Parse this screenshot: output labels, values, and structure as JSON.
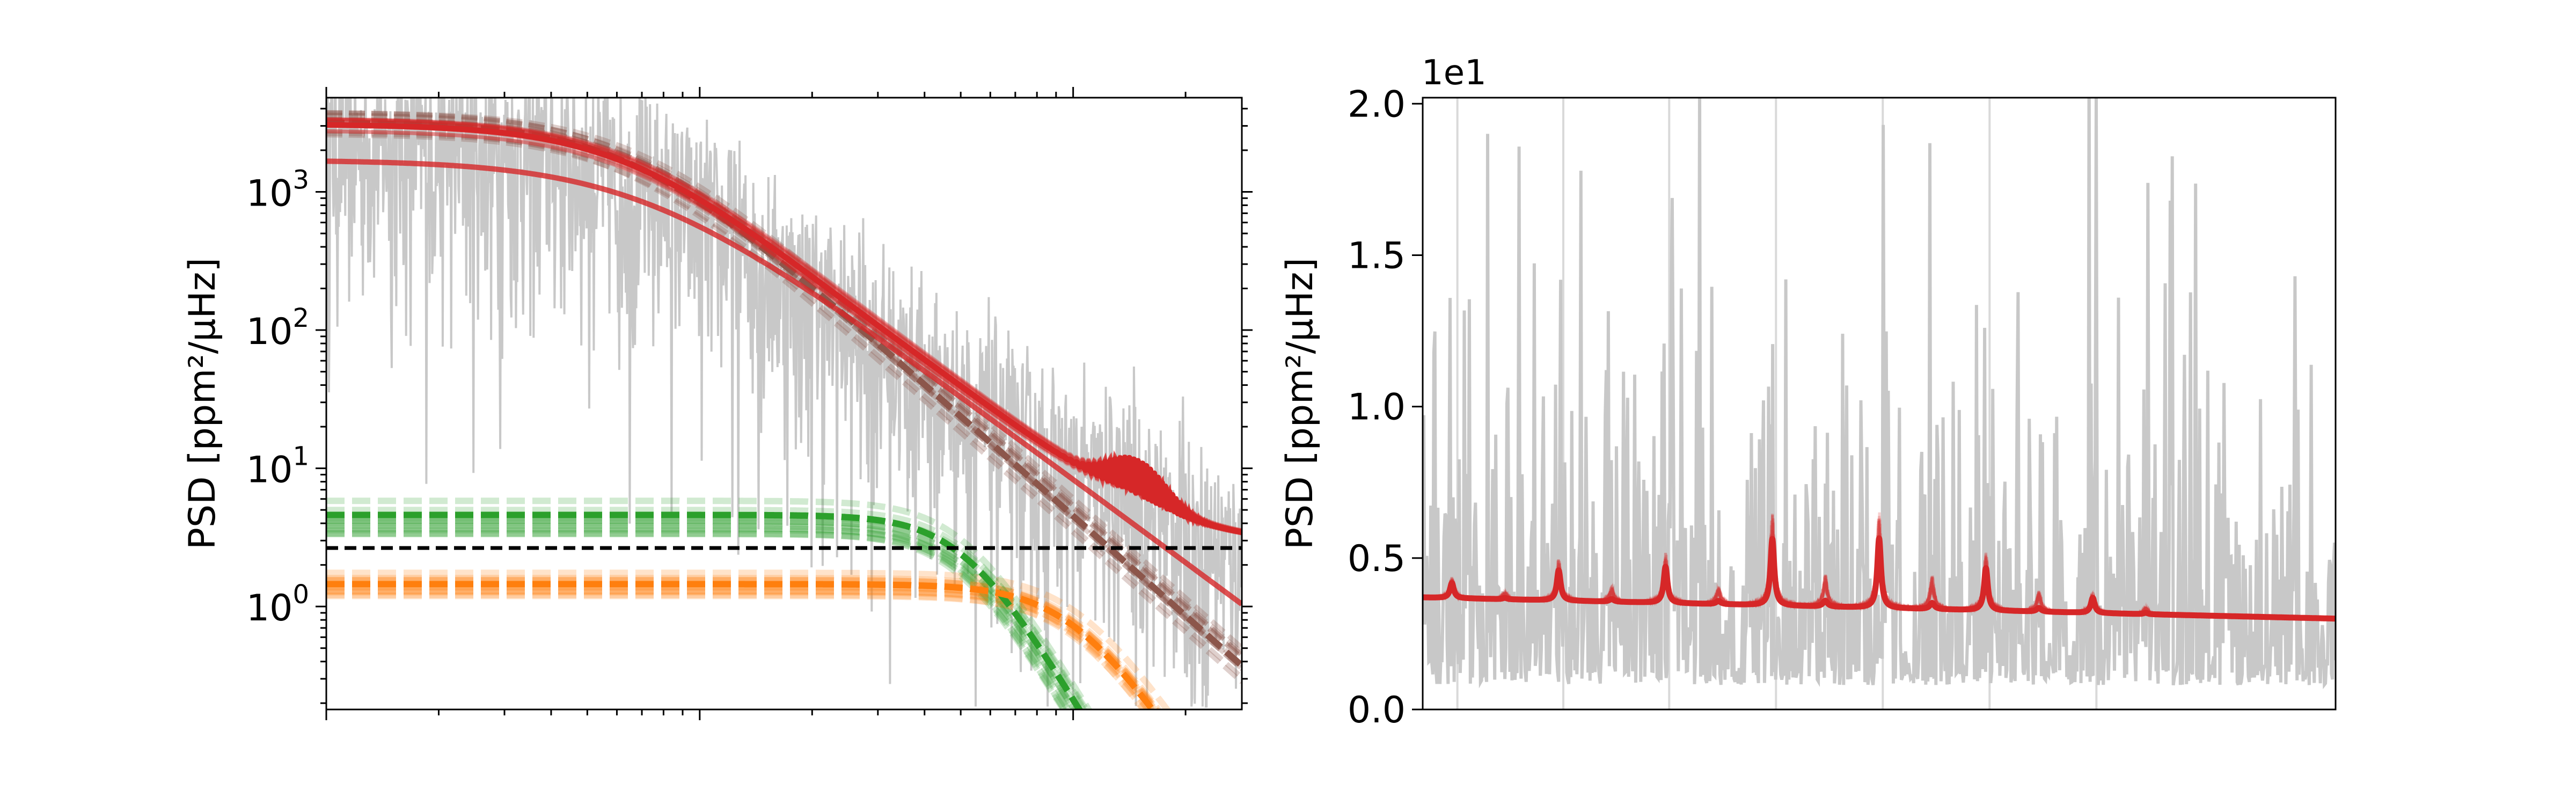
{
  "chart_data": [
    {
      "type": "line",
      "panel": "left",
      "title": "",
      "xlabel": "",
      "ylabel": "PSD [ppm²/μHz]",
      "yscale": "log",
      "xscale": "log",
      "ylim": [
        0.18,
        4800
      ],
      "xlim": [
        1,
        283
      ],
      "yticks": [
        {
          "value": 1,
          "base": "10",
          "exp": "0"
        },
        {
          "value": 10,
          "base": "10",
          "exp": "1"
        },
        {
          "value": 100,
          "base": "10",
          "exp": "2"
        },
        {
          "value": 1000,
          "base": "10",
          "exp": "3"
        }
      ],
      "x_tick_labels_shown": false,
      "grid": false,
      "legend": "none",
      "white_noise_level": 2.65,
      "oscillation_envelope": {
        "center": 144,
        "amplitude": 5.5,
        "width": 0.07
      },
      "components": [
        {
          "role": "granulation-high",
          "color": "#2ca02c",
          "style": "dashed",
          "level": 4.6,
          "knee": 51,
          "exponent": 4.5
        },
        {
          "role": "granulation-faint",
          "color": "#ff7f0e",
          "style": "dashed",
          "level": 1.45,
          "knee": 100,
          "exponent": 4.0
        },
        {
          "role": "granulation-low",
          "color": "#8c564b",
          "style": "dashed",
          "level": 3200,
          "knee": 6.5,
          "exponent": 2.4
        },
        {
          "role": "low-frequency",
          "color": "#d62728",
          "style": "solid",
          "level": 1700,
          "knee": 7.0,
          "exponent": 2.0
        },
        {
          "role": "total-model",
          "color": "#d62728",
          "style": "solid"
        }
      ],
      "colors": {
        "data": "#c8c8c8",
        "model": "#d62728",
        "white_noise": "#000000"
      }
    },
    {
      "type": "line",
      "panel": "right",
      "title": "",
      "xlabel": "",
      "ylabel": "PSD [ppm²/μHz]",
      "y_offset_label": "1e1",
      "ylim": [
        0.0,
        2.02
      ],
      "yticks": [
        "0.0",
        "0.5",
        "1.0",
        "1.5",
        "2.0"
      ],
      "ytick_values": [
        0.0,
        0.5,
        1.0,
        1.5,
        2.0
      ],
      "xlim": [
        0,
        1
      ],
      "x_tick_labels_shown": false,
      "grid": false,
      "legend": "none",
      "background": {
        "start": 0.37,
        "end": 0.3
      },
      "mode_positions": [
        0.032,
        0.149,
        0.266,
        0.383,
        0.5,
        0.617,
        0.734
      ],
      "mode_heights": [
        0.05,
        0.1,
        0.12,
        0.22,
        0.23,
        0.14,
        0.05
      ],
      "vertical_lines": [
        0.038,
        0.154,
        0.27,
        0.387,
        0.504,
        0.621,
        0.738
      ],
      "data_spikes": [
        {
          "x": 0.504,
          "y": 1.93
        },
        {
          "x": 0.556,
          "y": 1.87
        },
        {
          "x": 0.738,
          "y": 2.02
        },
        {
          "x": 0.398,
          "y": 1.42
        },
        {
          "x": 0.283,
          "y": 1.39
        },
        {
          "x": 0.819,
          "y": 1.68
        },
        {
          "x": 0.615,
          "y": 1.26
        }
      ],
      "colors": {
        "data": "#c8c8c8",
        "model": "#d62728",
        "grid_line": "#d9d9d9"
      }
    }
  ]
}
